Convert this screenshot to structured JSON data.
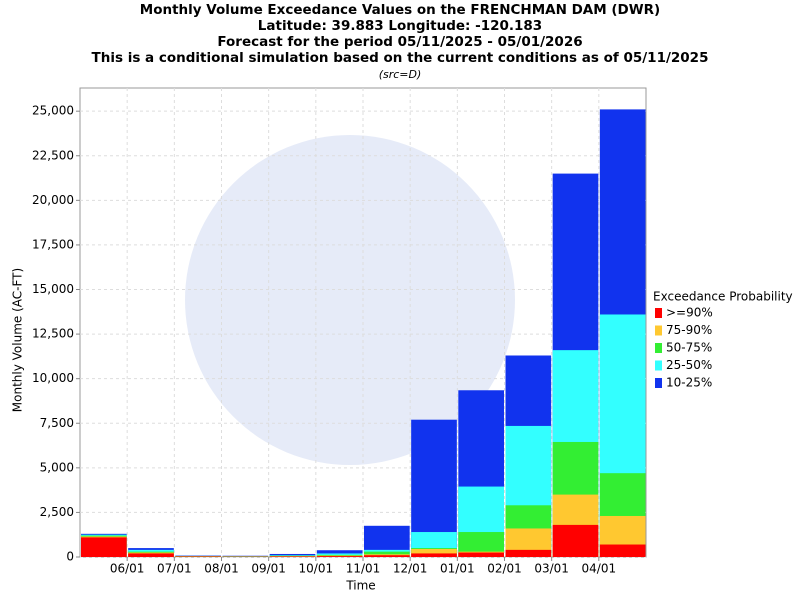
{
  "chart_data": {
    "type": "overlap_bar",
    "title": [
      "Monthly Volume Exceedance Values on the FRENCHMAN DAM (DWR)",
      "Latitude: 39.883 Longitude: -120.183",
      "Forecast for the period 05/11/2025 - 05/01/2026",
      "This is a conditional simulation based on the current conditions as of 05/11/2025"
    ],
    "subtitle": "(src=D)",
    "xlabel": "Time",
    "ylabel": "Monthly Volume (AC-FT)",
    "xticks": [
      "06/01",
      "07/01",
      "08/01",
      "09/01",
      "10/01",
      "11/01",
      "12/01",
      "01/01",
      "02/01",
      "03/01",
      "04/01"
    ],
    "legend_title": "Exceedance Probability",
    "ylim": [
      0,
      26300
    ],
    "yticks": [
      0,
      {
        "value": 2500,
        "label": "2,500"
      },
      {
        "value": 5000,
        "label": "5,000"
      },
      {
        "value": 7500,
        "label": "7,500"
      },
      {
        "value": 10000,
        "label": "10,000"
      },
      {
        "value": 12500,
        "label": "12,500"
      },
      {
        "value": 15000,
        "label": "15,000"
      },
      {
        "value": 17500,
        "label": "17,500"
      },
      {
        "value": 20000,
        "label": "20,000"
      },
      {
        "value": 22500,
        "label": "22,500"
      },
      {
        "value": 25000,
        "label": "25,000"
      }
    ],
    "grid": true,
    "series": [
      {
        "name": ">=90%",
        "color": "#ff0000",
        "values": [
          1100,
          200,
          30,
          20,
          30,
          50,
          100,
          200,
          250,
          400,
          1800,
          700
        ]
      },
      {
        "name": "75-90%",
        "color": "#ffc830",
        "values": [
          1150,
          250,
          40,
          30,
          50,
          80,
          150,
          450,
          300,
          1600,
          3500,
          2300
        ]
      },
      {
        "name": "50-75%",
        "color": "#33ee33",
        "values": [
          1200,
          300,
          50,
          40,
          70,
          120,
          300,
          500,
          1400,
          2900,
          6450,
          4700
        ]
      },
      {
        "name": "25-50%",
        "color": "#33ffff",
        "values": [
          1250,
          400,
          60,
          50,
          100,
          200,
          400,
          1400,
          3950,
          7350,
          11600,
          13600
        ]
      },
      {
        "name": "10-25%",
        "color": "#1133ee",
        "values": [
          1300,
          500,
          80,
          70,
          170,
          380,
          1750,
          7700,
          9350,
          11300,
          21500,
          25100
        ]
      }
    ]
  }
}
